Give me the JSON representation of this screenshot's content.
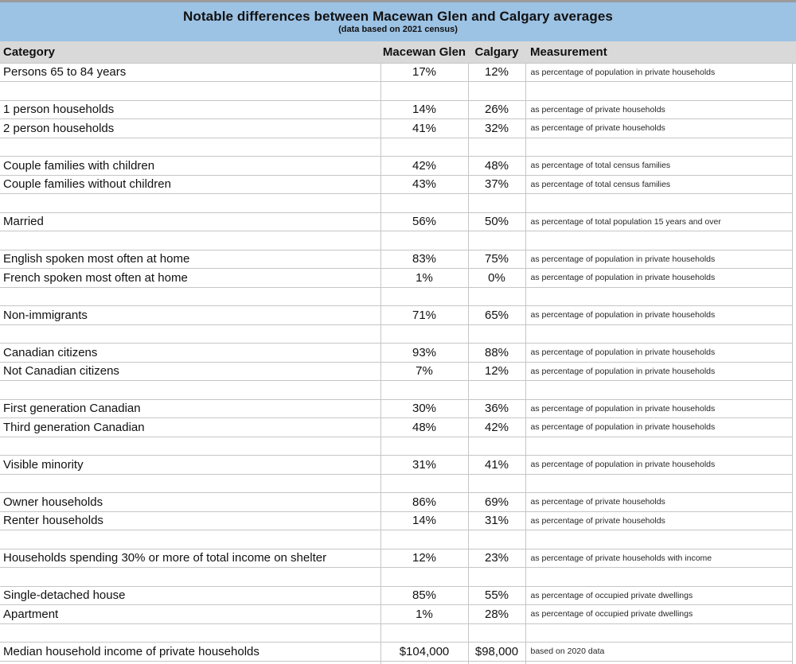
{
  "header": {
    "title": "Notable differences between Macewan Glen and Calgary averages",
    "subtitle": "(data based on 2021 census)"
  },
  "colors": {
    "title_band": "#9cc2e4",
    "header_row": "#d9d9d9",
    "gridline": "#c6c6c6",
    "top_strip": "#9b9b9b",
    "text": "#111111",
    "measurement_text": "#262626"
  },
  "chart_data": {
    "type": "table",
    "title": "Notable differences between Macewan Glen and Calgary averages",
    "subtitle": "(data based on 2021 census)",
    "columns": [
      "Category",
      "Macewan Glen",
      "Calgary",
      "Measurement"
    ],
    "rows": [
      {
        "category": "Persons 65 to 84 years",
        "macewan_glen": "17%",
        "calgary": "12%",
        "measurement": "as percentage of population in private households"
      },
      {
        "blank": true
      },
      {
        "category": "1 person households",
        "macewan_glen": "14%",
        "calgary": "26%",
        "measurement": "as percentage of private households"
      },
      {
        "category": "2 person households",
        "macewan_glen": "41%",
        "calgary": "32%",
        "measurement": "as percentage of private households"
      },
      {
        "blank": true
      },
      {
        "category": "Couple families with children",
        "macewan_glen": "42%",
        "calgary": "48%",
        "measurement": "as percentage of total census families"
      },
      {
        "category": "Couple families without children",
        "macewan_glen": "43%",
        "calgary": "37%",
        "measurement": "as percentage of total census families"
      },
      {
        "blank": true
      },
      {
        "category": "Married",
        "macewan_glen": "56%",
        "calgary": "50%",
        "measurement": "as percentage of total population 15 years and over"
      },
      {
        "blank": true
      },
      {
        "category": "English spoken most often at home",
        "macewan_glen": "83%",
        "calgary": "75%",
        "measurement": "as percentage of population in private households"
      },
      {
        "category": "French spoken most often at home",
        "macewan_glen": "1%",
        "calgary": "0%",
        "measurement": "as percentage of population in private households"
      },
      {
        "blank": true
      },
      {
        "category": "Non-immigrants",
        "macewan_glen": "71%",
        "calgary": "65%",
        "measurement": "as percentage of population in private households"
      },
      {
        "blank": true
      },
      {
        "category": "Canadian citizens",
        "macewan_glen": "93%",
        "calgary": "88%",
        "measurement": "as percentage of population in private households"
      },
      {
        "category": "Not Canadian citizens",
        "macewan_glen": "7%",
        "calgary": "12%",
        "measurement": "as percentage of population in private households"
      },
      {
        "blank": true
      },
      {
        "category": "First generation Canadian",
        "macewan_glen": "30%",
        "calgary": "36%",
        "measurement": "as percentage of population in private households"
      },
      {
        "category": "Third generation Canadian",
        "macewan_glen": "48%",
        "calgary": "42%",
        "measurement": "as percentage of population in private households"
      },
      {
        "blank": true
      },
      {
        "category": "Visible minority",
        "macewan_glen": "31%",
        "calgary": "41%",
        "measurement": "as percentage of population in private households"
      },
      {
        "blank": true
      },
      {
        "category": "Owner households",
        "macewan_glen": "86%",
        "calgary": "69%",
        "measurement": "as percentage of private households"
      },
      {
        "category": "Renter households",
        "macewan_glen": "14%",
        "calgary": "31%",
        "measurement": "as percentage of private households"
      },
      {
        "blank": true
      },
      {
        "category": "Households spending 30% or more of total income on shelter",
        "macewan_glen": "12%",
        "calgary": "23%",
        "measurement": "as percentage of private households with income"
      },
      {
        "blank": true
      },
      {
        "category": "Single-detached house",
        "macewan_glen": "85%",
        "calgary": "55%",
        "measurement": "as percentage of occupied private dwellings"
      },
      {
        "category": "Apartment",
        "macewan_glen": "1%",
        "calgary": "28%",
        "measurement": "as percentage of occupied private dwellings"
      },
      {
        "blank": true
      },
      {
        "category": "Median household income of private households",
        "macewan_glen": "$104,000",
        "calgary": "$98,000",
        "measurement": "based on 2020 data"
      }
    ]
  }
}
